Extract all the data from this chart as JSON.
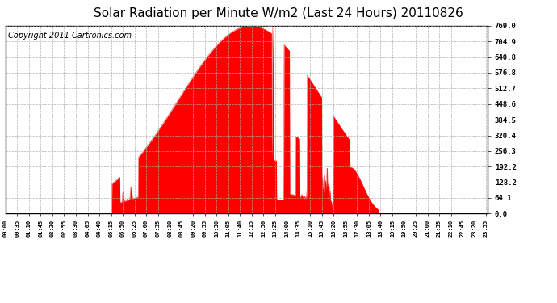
{
  "title": "Solar Radiation per Minute W/m2 (Last 24 Hours) 20110826",
  "copyright_text": "Copyright 2011 Cartronics.com",
  "y_ticks": [
    0.0,
    64.1,
    128.2,
    192.2,
    256.3,
    320.4,
    384.5,
    448.6,
    512.7,
    576.8,
    640.8,
    704.9,
    769.0
  ],
  "ymax": 769.0,
  "ymin": 0.0,
  "fill_color": "#FF0000",
  "line_color": "#FF0000",
  "grid_color": "#CCCCCC",
  "background_color": "#FFFFFF",
  "border_color": "#000000",
  "title_fontsize": 11,
  "copyright_fontsize": 7,
  "x_tick_labels": [
    "00:00",
    "00:35",
    "01:10",
    "01:45",
    "02:20",
    "02:55",
    "03:30",
    "04:05",
    "04:40",
    "05:15",
    "05:50",
    "06:25",
    "07:00",
    "07:35",
    "08:10",
    "08:45",
    "09:20",
    "09:55",
    "10:30",
    "11:05",
    "11:40",
    "12:15",
    "12:50",
    "13:25",
    "14:00",
    "14:35",
    "15:10",
    "15:45",
    "16:20",
    "16:55",
    "17:30",
    "18:05",
    "18:40",
    "19:15",
    "19:50",
    "20:25",
    "21:00",
    "21:35",
    "22:10",
    "22:45",
    "23:20",
    "23:55"
  ],
  "num_points": 1440
}
